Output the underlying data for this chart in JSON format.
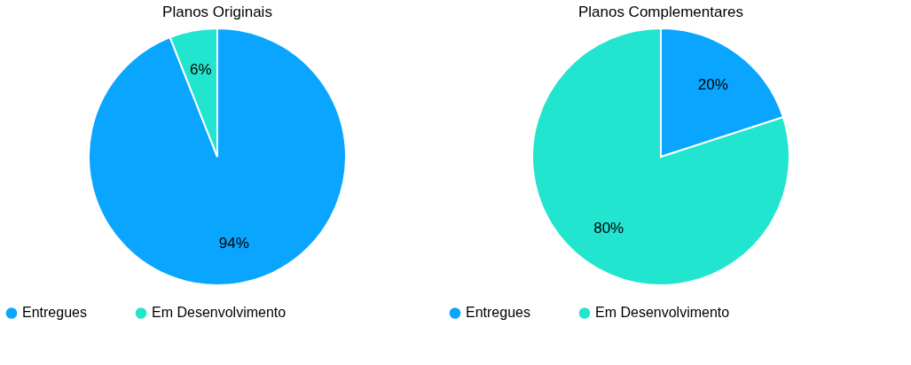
{
  "chart_data": [
    {
      "type": "pie",
      "title": "Planos Originais",
      "categories": [
        "Entregues",
        "Em Desenvolvimento"
      ],
      "values": [
        94,
        6
      ],
      "colors": [
        "#0aa5ff",
        "#22e5cf"
      ],
      "value_labels": [
        "94%",
        "6%"
      ],
      "legend": "bottom"
    },
    {
      "type": "pie",
      "title": "Planos Complementares",
      "categories": [
        "Entregues",
        "Em Desenvolvimento"
      ],
      "values": [
        20,
        80
      ],
      "colors": [
        "#0aa5ff",
        "#22e5cf"
      ],
      "value_labels": [
        "20%",
        "80%"
      ],
      "legend": "bottom"
    }
  ]
}
